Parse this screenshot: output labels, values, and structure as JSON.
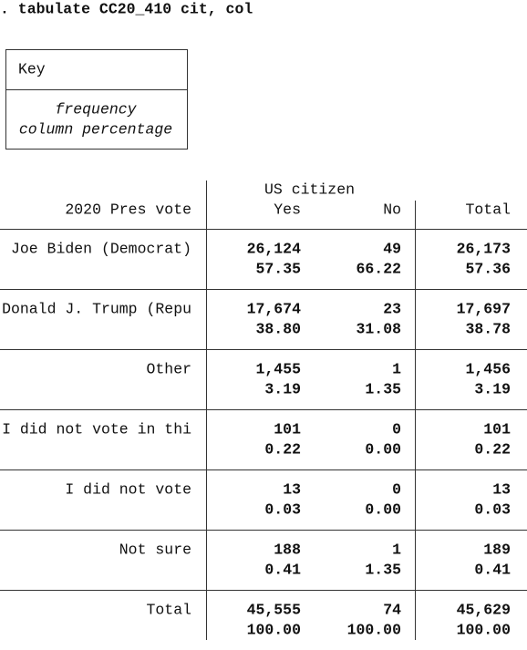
{
  "command": ". tabulate CC20_410 cit, col",
  "key": {
    "title": "Key",
    "lines": [
      "frequency",
      "column percentage"
    ]
  },
  "table": {
    "row_header": "2020 Pres vote",
    "column_group": "US citizen",
    "columns": [
      "Yes",
      "No",
      "Total"
    ],
    "rows": [
      {
        "label": "Joe Biden (Democrat)",
        "freq": [
          "26,124",
          "49",
          "26,173"
        ],
        "pct": [
          "57.35",
          "66.22",
          "57.36"
        ]
      },
      {
        "label": "Donald J. Trump (Repu",
        "freq": [
          "17,674",
          "23",
          "17,697"
        ],
        "pct": [
          "38.80",
          "31.08",
          "38.78"
        ]
      },
      {
        "label": "Other",
        "freq": [
          "1,455",
          "1",
          "1,456"
        ],
        "pct": [
          "3.19",
          "1.35",
          "3.19"
        ]
      },
      {
        "label": "I did not vote in thi",
        "freq": [
          "101",
          "0",
          "101"
        ],
        "pct": [
          "0.22",
          "0.00",
          "0.22"
        ]
      },
      {
        "label": "I did not vote",
        "freq": [
          "13",
          "0",
          "13"
        ],
        "pct": [
          "0.03",
          "0.00",
          "0.03"
        ]
      },
      {
        "label": "Not sure",
        "freq": [
          "188",
          "1",
          "189"
        ],
        "pct": [
          "0.41",
          "1.35",
          "0.41"
        ]
      },
      {
        "label": "Total",
        "freq": [
          "45,555",
          "74",
          "45,629"
        ],
        "pct": [
          "100.00",
          "100.00",
          "100.00"
        ]
      }
    ]
  }
}
